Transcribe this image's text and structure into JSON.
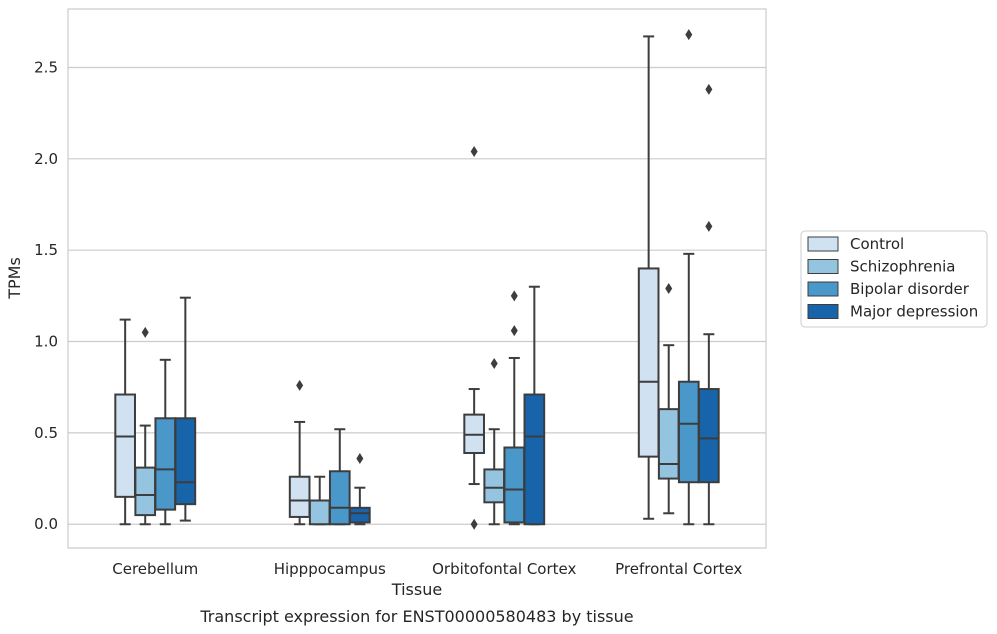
{
  "chart_data": {
    "type": "box",
    "title": "Transcript expression for ENST00000580483 by tissue",
    "xlabel": "Tissue",
    "ylabel": "TPMs",
    "ylim": [
      -0.13,
      2.82
    ],
    "yticks": [
      0.0,
      0.5,
      1.0,
      1.5,
      2.0,
      2.5
    ],
    "ytick_labels": [
      "0.0",
      "0.5",
      "1.0",
      "1.5",
      "2.0",
      "2.5"
    ],
    "grid": "horizontal",
    "legend_position": "right",
    "categories": [
      "Cerebellum",
      "Hipppocampus",
      "Orbitofontal Cortex",
      "Prefrontal Cortex"
    ],
    "series": [
      {
        "name": "Control",
        "color": "#d0e1f2",
        "boxes": [
          {
            "whislo": 0.0,
            "q1": 0.15,
            "med": 0.48,
            "q3": 0.71,
            "whishi": 1.12,
            "fliers": []
          },
          {
            "whislo": 0.0,
            "q1": 0.04,
            "med": 0.13,
            "q3": 0.26,
            "whishi": 0.56,
            "fliers": [
              0.76
            ]
          },
          {
            "whislo": 0.22,
            "q1": 0.39,
            "med": 0.49,
            "q3": 0.6,
            "whishi": 0.74,
            "fliers": [
              0.0,
              2.04
            ]
          },
          {
            "whislo": 0.03,
            "q1": 0.37,
            "med": 0.78,
            "q3": 1.4,
            "whishi": 2.67,
            "fliers": []
          }
        ]
      },
      {
        "name": "Schizophrenia",
        "color": "#94c4df",
        "boxes": [
          {
            "whislo": 0.0,
            "q1": 0.05,
            "med": 0.16,
            "q3": 0.31,
            "whishi": 0.54,
            "fliers": [
              1.05
            ]
          },
          {
            "whislo": 0.0,
            "q1": 0.0,
            "med": 0.13,
            "q3": 0.13,
            "whishi": 0.26,
            "fliers": []
          },
          {
            "whislo": 0.0,
            "q1": 0.12,
            "med": 0.2,
            "q3": 0.3,
            "whishi": 0.52,
            "fliers": [
              0.88
            ]
          },
          {
            "whislo": 0.06,
            "q1": 0.25,
            "med": 0.33,
            "q3": 0.63,
            "whishi": 0.98,
            "fliers": [
              1.29
            ]
          }
        ]
      },
      {
        "name": "Bipolar disorder",
        "color": "#4a98c9",
        "boxes": [
          {
            "whislo": 0.0,
            "q1": 0.08,
            "med": 0.3,
            "q3": 0.58,
            "whishi": 0.9,
            "fliers": []
          },
          {
            "whislo": 0.0,
            "q1": 0.0,
            "med": 0.09,
            "q3": 0.29,
            "whishi": 0.52,
            "fliers": []
          },
          {
            "whislo": 0.0,
            "q1": 0.01,
            "med": 0.19,
            "q3": 0.42,
            "whishi": 0.91,
            "fliers": [
              1.06,
              1.25
            ]
          },
          {
            "whislo": 0.0,
            "q1": 0.23,
            "med": 0.55,
            "q3": 0.78,
            "whishi": 1.48,
            "fliers": [
              2.68
            ]
          }
        ]
      },
      {
        "name": "Major depression",
        "color": "#1764ab",
        "boxes": [
          {
            "whislo": 0.02,
            "q1": 0.11,
            "med": 0.23,
            "q3": 0.58,
            "whishi": 1.24,
            "fliers": []
          },
          {
            "whislo": 0.0,
            "q1": 0.01,
            "med": 0.06,
            "q3": 0.09,
            "whishi": 0.2,
            "fliers": [
              0.36
            ]
          },
          {
            "whislo": 0.0,
            "q1": 0.0,
            "med": 0.48,
            "q3": 0.71,
            "whishi": 1.3,
            "fliers": []
          },
          {
            "whislo": 0.0,
            "q1": 0.23,
            "med": 0.47,
            "q3": 0.74,
            "whishi": 1.04,
            "fliers": [
              1.63,
              2.38
            ]
          }
        ]
      }
    ]
  }
}
